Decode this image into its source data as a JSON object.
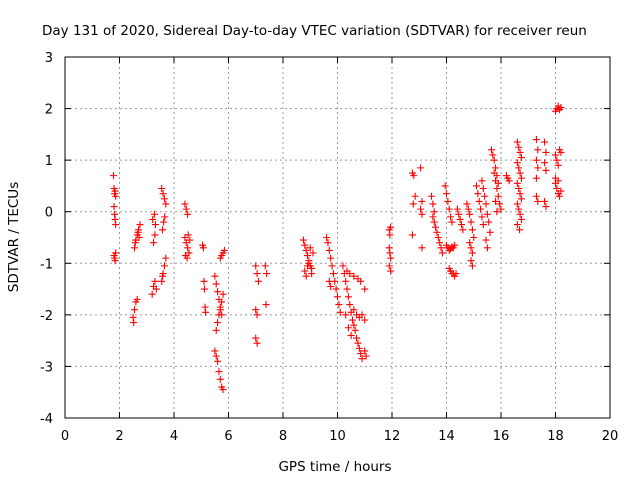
{
  "chart_data": {
    "type": "scatter",
    "title": "Day 131 of 2020, Sidereal Day-to-day VTEC variation (SDTVAR) for receiver reun",
    "xlabel": "GPS time / hours",
    "ylabel": "SDTVAR / TECUs",
    "xlim": [
      0,
      20
    ],
    "ylim": [
      -4,
      3
    ],
    "xticks": [
      "0",
      "2",
      "4",
      "6",
      "8",
      "10",
      "12",
      "14",
      "16",
      "18",
      "20"
    ],
    "yticks": [
      "-4",
      "-3",
      "-2",
      "-1",
      "0",
      "1",
      "2",
      "3"
    ],
    "grid": true,
    "marker": "+",
    "color": "#ff0000",
    "series": [
      {
        "name": "SDTVAR",
        "points": [
          [
            1.78,
            0.7
          ],
          [
            1.8,
            0.45
          ],
          [
            1.82,
            0.35
          ],
          [
            1.84,
            0.4
          ],
          [
            1.86,
            0.3
          ],
          [
            1.8,
            0.1
          ],
          [
            1.82,
            -0.05
          ],
          [
            1.84,
            -0.15
          ],
          [
            1.86,
            -0.25
          ],
          [
            1.8,
            -0.85
          ],
          [
            1.82,
            -0.9
          ],
          [
            1.84,
            -0.95
          ],
          [
            1.86,
            -0.8
          ],
          [
            2.5,
            -2.05
          ],
          [
            2.55,
            -1.9
          ],
          [
            2.6,
            -1.75
          ],
          [
            2.65,
            -1.7
          ],
          [
            2.52,
            -2.15
          ],
          [
            2.55,
            -0.7
          ],
          [
            2.6,
            -0.55
          ],
          [
            2.65,
            -0.45
          ],
          [
            2.7,
            -0.35
          ],
          [
            2.75,
            -0.25
          ],
          [
            2.58,
            -0.6
          ],
          [
            2.68,
            -0.4
          ],
          [
            2.72,
            -0.5
          ],
          [
            3.2,
            -1.6
          ],
          [
            3.25,
            -1.45
          ],
          [
            3.3,
            -1.35
          ],
          [
            3.35,
            -1.5
          ],
          [
            3.22,
            -0.15
          ],
          [
            3.28,
            -0.05
          ],
          [
            3.32,
            -0.25
          ],
          [
            3.25,
            -0.6
          ],
          [
            3.3,
            -0.45
          ],
          [
            3.55,
            0.45
          ],
          [
            3.6,
            0.35
          ],
          [
            3.65,
            0.25
          ],
          [
            3.7,
            0.15
          ],
          [
            3.58,
            -0.35
          ],
          [
            3.62,
            -0.2
          ],
          [
            3.66,
            -0.1
          ],
          [
            3.55,
            -1.35
          ],
          [
            3.6,
            -1.2
          ],
          [
            3.65,
            -1.05
          ],
          [
            3.7,
            -0.9
          ],
          [
            3.58,
            -1.25
          ],
          [
            4.4,
            0.15
          ],
          [
            4.45,
            0.05
          ],
          [
            4.5,
            -0.05
          ],
          [
            4.4,
            -0.5
          ],
          [
            4.45,
            -0.6
          ],
          [
            4.5,
            -0.7
          ],
          [
            4.55,
            -0.8
          ],
          [
            4.42,
            -0.85
          ],
          [
            4.48,
            -0.9
          ],
          [
            4.52,
            -0.45
          ],
          [
            4.58,
            -0.55
          ],
          [
            5.05,
            -0.65
          ],
          [
            5.08,
            -0.7
          ],
          [
            5.1,
            -1.35
          ],
          [
            5.12,
            -1.5
          ],
          [
            5.14,
            -1.85
          ],
          [
            5.16,
            -1.95
          ],
          [
            5.5,
            -1.25
          ],
          [
            5.55,
            -1.4
          ],
          [
            5.6,
            -1.55
          ],
          [
            5.65,
            -1.7
          ],
          [
            5.7,
            -1.85
          ],
          [
            5.75,
            -2.0
          ],
          [
            5.5,
            -2.7
          ],
          [
            5.55,
            -2.8
          ],
          [
            5.6,
            -2.9
          ],
          [
            5.65,
            -3.1
          ],
          [
            5.7,
            -3.25
          ],
          [
            5.75,
            -3.4
          ],
          [
            5.8,
            -3.45
          ],
          [
            5.55,
            -2.3
          ],
          [
            5.6,
            -2.15
          ],
          [
            5.65,
            -2.0
          ],
          [
            5.7,
            -1.9
          ],
          [
            5.75,
            -1.75
          ],
          [
            5.8,
            -1.6
          ],
          [
            5.7,
            -0.9
          ],
          [
            5.75,
            -0.85
          ],
          [
            5.8,
            -0.8
          ],
          [
            5.85,
            -0.75
          ],
          [
            7.0,
            -1.05
          ],
          [
            7.05,
            -1.2
          ],
          [
            7.1,
            -1.35
          ],
          [
            7.0,
            -1.9
          ],
          [
            7.05,
            -2.0
          ],
          [
            7.0,
            -2.45
          ],
          [
            7.05,
            -2.55
          ],
          [
            7.35,
            -1.05
          ],
          [
            7.4,
            -1.2
          ],
          [
            7.38,
            -1.8
          ],
          [
            8.75,
            -0.55
          ],
          [
            8.8,
            -0.65
          ],
          [
            8.85,
            -0.75
          ],
          [
            8.9,
            -0.85
          ],
          [
            8.95,
            -0.95
          ],
          [
            9.0,
            -1.05
          ],
          [
            9.05,
            -1.1
          ],
          [
            8.8,
            -1.15
          ],
          [
            8.85,
            -1.25
          ],
          [
            8.9,
            -1.05
          ],
          [
            9.0,
            -0.7
          ],
          [
            9.1,
            -0.8
          ],
          [
            9.05,
            -1.2
          ],
          [
            8.95,
            -1.0
          ],
          [
            9.6,
            -0.5
          ],
          [
            9.65,
            -0.6
          ],
          [
            9.7,
            -0.75
          ],
          [
            9.75,
            -0.9
          ],
          [
            9.8,
            -1.05
          ],
          [
            9.85,
            -1.2
          ],
          [
            9.9,
            -1.35
          ],
          [
            9.95,
            -1.5
          ],
          [
            10.0,
            -1.65
          ],
          [
            10.05,
            -1.8
          ],
          [
            10.1,
            -1.95
          ],
          [
            9.7,
            -1.35
          ],
          [
            9.75,
            -1.45
          ],
          [
            10.2,
            -1.05
          ],
          [
            10.25,
            -1.2
          ],
          [
            10.3,
            -1.35
          ],
          [
            10.35,
            -1.5
          ],
          [
            10.4,
            -1.65
          ],
          [
            10.45,
            -1.8
          ],
          [
            10.5,
            -1.95
          ],
          [
            10.55,
            -2.1
          ],
          [
            10.6,
            -2.2
          ],
          [
            10.65,
            -2.3
          ],
          [
            10.7,
            -2.45
          ],
          [
            10.75,
            -2.55
          ],
          [
            10.8,
            -2.65
          ],
          [
            10.85,
            -2.75
          ],
          [
            10.9,
            -2.85
          ],
          [
            11.0,
            -2.7
          ],
          [
            11.05,
            -2.8
          ],
          [
            10.3,
            -2.0
          ],
          [
            10.4,
            -2.25
          ],
          [
            10.5,
            -2.4
          ],
          [
            10.6,
            -1.9
          ],
          [
            10.7,
            -2.0
          ],
          [
            10.8,
            -2.05
          ],
          [
            10.9,
            -2.0
          ],
          [
            11.0,
            -2.1
          ],
          [
            10.35,
            -1.15
          ],
          [
            10.45,
            -1.2
          ],
          [
            10.6,
            -1.25
          ],
          [
            10.75,
            -1.3
          ],
          [
            10.85,
            -1.35
          ],
          [
            11.0,
            -1.5
          ],
          [
            11.9,
            -0.35
          ],
          [
            11.92,
            -0.45
          ],
          [
            11.95,
            -0.3
          ],
          [
            11.9,
            -0.7
          ],
          [
            11.92,
            -0.8
          ],
          [
            11.95,
            -0.9
          ],
          [
            11.9,
            -1.05
          ],
          [
            11.95,
            -1.15
          ],
          [
            12.75,
            0.75
          ],
          [
            12.8,
            0.7
          ],
          [
            12.85,
            0.3
          ],
          [
            12.78,
            0.15
          ],
          [
            12.75,
            -0.45
          ],
          [
            13.05,
            0.85
          ],
          [
            13.1,
            0.2
          ],
          [
            13.05,
            0.05
          ],
          [
            13.1,
            -0.05
          ],
          [
            13.1,
            -0.7
          ],
          [
            13.45,
            0.3
          ],
          [
            13.5,
            0.15
          ],
          [
            13.55,
            0.0
          ],
          [
            13.5,
            -0.1
          ],
          [
            13.55,
            -0.2
          ],
          [
            13.6,
            -0.3
          ],
          [
            13.65,
            -0.4
          ],
          [
            13.7,
            -0.5
          ],
          [
            13.75,
            -0.6
          ],
          [
            13.8,
            -0.7
          ],
          [
            13.85,
            -0.8
          ],
          [
            13.95,
            0.5
          ],
          [
            14.0,
            0.35
          ],
          [
            14.05,
            0.2
          ],
          [
            14.1,
            0.05
          ],
          [
            14.15,
            -0.1
          ],
          [
            14.2,
            -0.2
          ],
          [
            14.0,
            -0.65
          ],
          [
            14.05,
            -0.7
          ],
          [
            14.1,
            -0.75
          ],
          [
            14.15,
            -0.72
          ],
          [
            14.2,
            -0.68
          ],
          [
            14.25,
            -0.7
          ],
          [
            14.3,
            -0.65
          ],
          [
            14.1,
            -1.1
          ],
          [
            14.15,
            -1.15
          ],
          [
            14.2,
            -1.2
          ],
          [
            14.25,
            -1.2
          ],
          [
            14.3,
            -1.25
          ],
          [
            14.35,
            -1.2
          ],
          [
            14.4,
            0.05
          ],
          [
            14.45,
            -0.05
          ],
          [
            14.5,
            -0.15
          ],
          [
            14.55,
            -0.25
          ],
          [
            14.6,
            -0.35
          ],
          [
            14.75,
            0.15
          ],
          [
            14.8,
            0.05
          ],
          [
            14.85,
            -0.05
          ],
          [
            14.9,
            -0.2
          ],
          [
            14.95,
            -0.35
          ],
          [
            15.0,
            -0.5
          ],
          [
            14.85,
            -0.6
          ],
          [
            14.9,
            -0.7
          ],
          [
            14.95,
            -0.8
          ],
          [
            14.9,
            -0.95
          ],
          [
            14.95,
            -1.05
          ],
          [
            15.1,
            0.5
          ],
          [
            15.15,
            0.35
          ],
          [
            15.2,
            0.2
          ],
          [
            15.25,
            0.05
          ],
          [
            15.3,
            -0.1
          ],
          [
            15.35,
            -0.25
          ],
          [
            15.3,
            0.6
          ],
          [
            15.35,
            0.45
          ],
          [
            15.4,
            0.3
          ],
          [
            15.45,
            0.15
          ],
          [
            15.5,
            -0.05
          ],
          [
            15.55,
            -0.2
          ],
          [
            15.6,
            -0.4
          ],
          [
            15.45,
            -0.55
          ],
          [
            15.5,
            -0.7
          ],
          [
            15.65,
            1.2
          ],
          [
            15.7,
            1.1
          ],
          [
            15.75,
            1.0
          ],
          [
            15.8,
            0.85
          ],
          [
            15.85,
            0.7
          ],
          [
            15.9,
            0.55
          ],
          [
            15.75,
            0.75
          ],
          [
            15.8,
            0.6
          ],
          [
            15.85,
            0.45
          ],
          [
            15.9,
            0.3
          ],
          [
            15.95,
            0.15
          ],
          [
            16.0,
            0.05
          ],
          [
            15.8,
            0.2
          ],
          [
            15.85,
            0.0
          ],
          [
            16.2,
            0.7
          ],
          [
            16.25,
            0.65
          ],
          [
            16.3,
            0.6
          ],
          [
            16.6,
            1.35
          ],
          [
            16.65,
            1.25
          ],
          [
            16.7,
            1.15
          ],
          [
            16.75,
            1.05
          ],
          [
            16.6,
            0.95
          ],
          [
            16.65,
            0.85
          ],
          [
            16.7,
            0.75
          ],
          [
            16.75,
            0.65
          ],
          [
            16.6,
            0.55
          ],
          [
            16.65,
            0.45
          ],
          [
            16.7,
            0.35
          ],
          [
            16.75,
            0.25
          ],
          [
            16.6,
            0.15
          ],
          [
            16.65,
            0.05
          ],
          [
            16.7,
            -0.05
          ],
          [
            16.75,
            -0.15
          ],
          [
            16.6,
            -0.25
          ],
          [
            16.68,
            -0.35
          ],
          [
            17.3,
            1.4
          ],
          [
            17.35,
            1.2
          ],
          [
            17.3,
            1.0
          ],
          [
            17.35,
            0.85
          ],
          [
            17.3,
            0.65
          ],
          [
            17.3,
            0.3
          ],
          [
            17.35,
            0.2
          ],
          [
            17.6,
            1.35
          ],
          [
            17.65,
            1.15
          ],
          [
            17.6,
            0.95
          ],
          [
            17.65,
            0.8
          ],
          [
            17.6,
            0.2
          ],
          [
            17.65,
            0.1
          ],
          [
            18.0,
            1.95
          ],
          [
            18.05,
            2.0
          ],
          [
            18.1,
            2.05
          ],
          [
            18.15,
            1.98
          ],
          [
            18.2,
            2.02
          ],
          [
            18.0,
            1.1
          ],
          [
            18.05,
            1.0
          ],
          [
            18.1,
            0.9
          ],
          [
            18.15,
            1.2
          ],
          [
            18.2,
            1.15
          ],
          [
            18.0,
            0.55
          ],
          [
            18.05,
            0.45
          ],
          [
            18.1,
            0.35
          ],
          [
            18.15,
            0.3
          ],
          [
            18.0,
            0.65
          ],
          [
            18.1,
            0.6
          ],
          [
            18.2,
            0.4
          ]
        ]
      }
    ]
  }
}
